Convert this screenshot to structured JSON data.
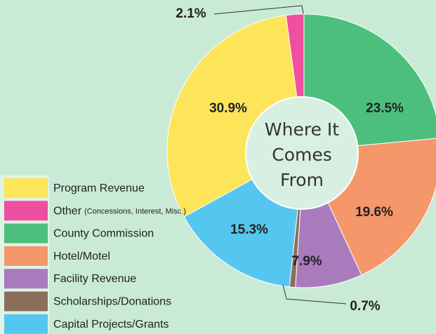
{
  "chart_data": {
    "type": "pie",
    "title": [
      "Where It",
      "Comes",
      "From"
    ],
    "slices": [
      {
        "name": "Program Revenue",
        "value": 30.9,
        "value_label": "30.9%",
        "color": "#fde55a"
      },
      {
        "name": "Other",
        "note": "(Concessions, Interest, Misc.)",
        "value": 2.1,
        "value_label": "2.1%",
        "color": "#f04ea0"
      },
      {
        "name": "County Commission",
        "value": 23.5,
        "value_label": "23.5%",
        "color": "#4cbf7c"
      },
      {
        "name": "Hotel/Motel",
        "value": 19.6,
        "value_label": "19.6%",
        "color": "#f5976a"
      },
      {
        "name": "Facility Revenue",
        "value": 7.9,
        "value_label": "7.9%",
        "color": "#a97bbd"
      },
      {
        "name": "Scholarships/Donations",
        "value": 0.7,
        "value_label": "0.7%",
        "color": "#8c6f5a"
      },
      {
        "name": "Capital Projects/Grants",
        "value": 15.3,
        "value_label": "15.3%",
        "color": "#55c6f0"
      }
    ]
  }
}
